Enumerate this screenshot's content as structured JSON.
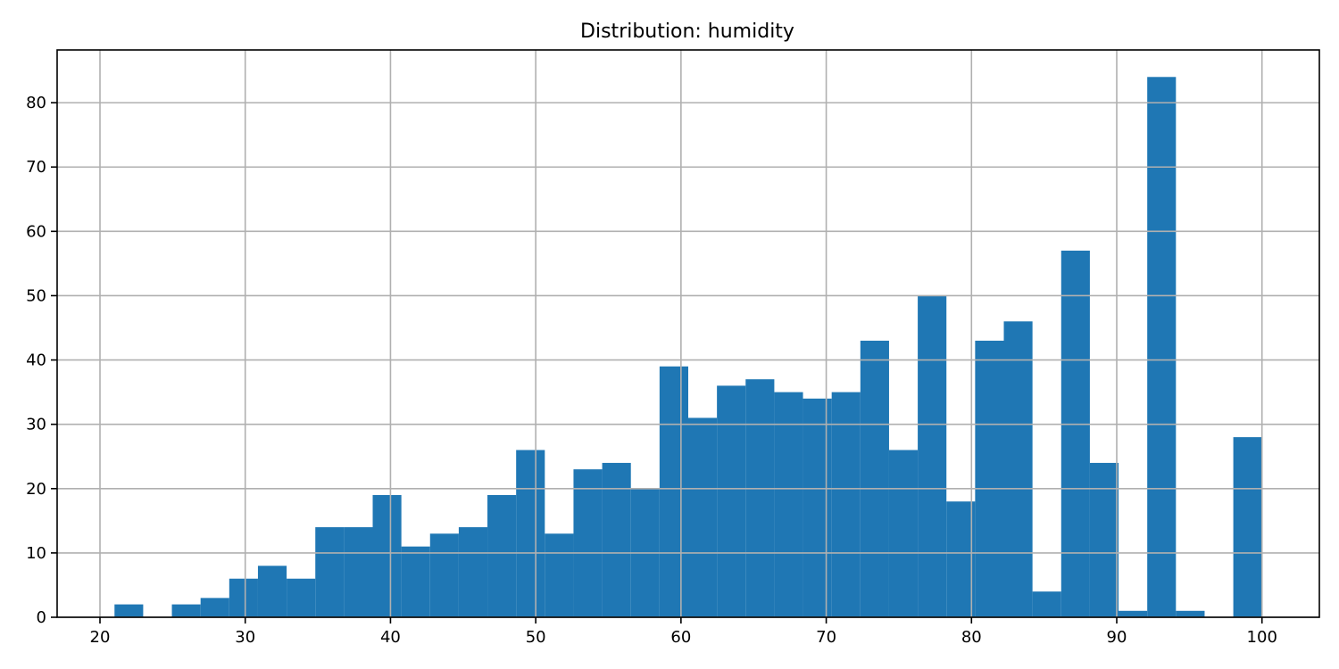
{
  "chart_data": {
    "type": "bar",
    "title": "Distribution: humidity",
    "xlabel": "",
    "ylabel": "",
    "xlim": [
      17.05,
      103.95
    ],
    "ylim": [
      0,
      88.2
    ],
    "grid": true,
    "bar_color": "#1f77b4",
    "grid_color": "#b0b0b0",
    "xticks": [
      20,
      30,
      40,
      50,
      60,
      70,
      80,
      90,
      100
    ],
    "yticks": [
      0,
      10,
      20,
      30,
      40,
      50,
      60,
      70,
      80
    ],
    "bin_start": 21,
    "bin_width": 1.975,
    "counts": [
      2,
      0,
      2,
      3,
      6,
      8,
      6,
      14,
      14,
      19,
      11,
      13,
      14,
      19,
      26,
      13,
      23,
      24,
      20,
      39,
      31,
      36,
      37,
      35,
      34,
      35,
      43,
      26,
      50,
      18,
      43,
      46,
      4,
      57,
      24,
      1,
      84,
      1,
      0,
      28
    ]
  }
}
